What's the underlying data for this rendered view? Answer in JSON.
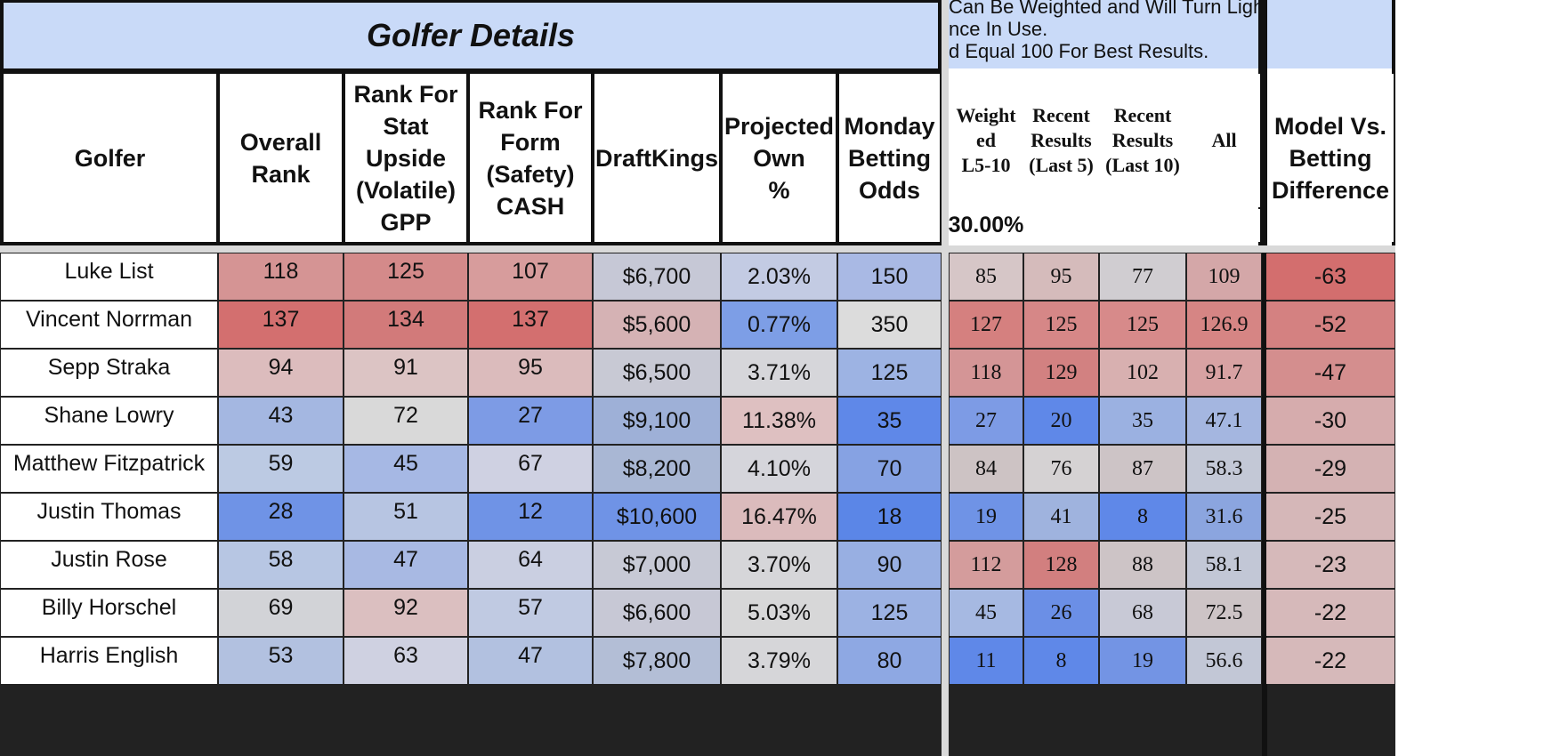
{
  "banner": {
    "title": "Golfer Details",
    "note_lines": [
      "Can Be Weighted and Will Turn Light",
      "nce In Use.",
      "d Equal 100 For Best Results."
    ]
  },
  "headers": {
    "golfer": "Golfer",
    "overall_rank": "Overall\nRank",
    "stat_upside": "Rank For\nStat\nUpside\n(Volatile)\nGPP",
    "form_safety": "Rank For\nForm\n(Safety)\nCASH",
    "draftkings": "DraftKings",
    "projected_own": "Projected\nOwn\n%",
    "monday_odds": "Monday\nBetting\nOdds",
    "weighted": "Weight\ned\nL5-10",
    "recent5": "Recent\nResults\n(Last 5)",
    "recent10": "Recent\nResults\n(Last 10)",
    "all": "All",
    "model_vs": "Model Vs.\nBetting\nDifference",
    "weight_value": "30.00%"
  },
  "rows": [
    {
      "golfer": "Luke List",
      "overall": "118",
      "upside": "125",
      "form": "107",
      "dk": "$6,700",
      "own": "2.03%",
      "odds": "150",
      "weighted": "85",
      "r5": "95",
      "r10": "77",
      "all": "109",
      "diff": "-63"
    },
    {
      "golfer": "Vincent Norrman",
      "overall": "137",
      "upside": "134",
      "form": "137",
      "dk": "$5,600",
      "own": "0.77%",
      "odds": "350",
      "weighted": "127",
      "r5": "125",
      "r10": "125",
      "all": "126.9",
      "diff": "-52"
    },
    {
      "golfer": "Sepp Straka",
      "overall": "94",
      "upside": "91",
      "form": "95",
      "dk": "$6,500",
      "own": "3.71%",
      "odds": "125",
      "weighted": "118",
      "r5": "129",
      "r10": "102",
      "all": "91.7",
      "diff": "-47"
    },
    {
      "golfer": "Shane Lowry",
      "overall": "43",
      "upside": "72",
      "form": "27",
      "dk": "$9,100",
      "own": "11.38%",
      "odds": "35",
      "weighted": "27",
      "r5": "20",
      "r10": "35",
      "all": "47.1",
      "diff": "-30"
    },
    {
      "golfer": "Matthew Fitzpatrick",
      "overall": "59",
      "upside": "45",
      "form": "67",
      "dk": "$8,200",
      "own": "4.10%",
      "odds": "70",
      "weighted": "84",
      "r5": "76",
      "r10": "87",
      "all": "58.3",
      "diff": "-29"
    },
    {
      "golfer": "Justin Thomas",
      "overall": "28",
      "upside": "51",
      "form": "12",
      "dk": "$10,600",
      "own": "16.47%",
      "odds": "18",
      "weighted": "19",
      "r5": "41",
      "r10": "8",
      "all": "31.6",
      "diff": "-25"
    },
    {
      "golfer": "Justin Rose",
      "overall": "58",
      "upside": "47",
      "form": "64",
      "dk": "$7,000",
      "own": "3.70%",
      "odds": "90",
      "weighted": "112",
      "r5": "128",
      "r10": "88",
      "all": "58.1",
      "diff": "-23"
    },
    {
      "golfer": "Billy Horschel",
      "overall": "69",
      "upside": "92",
      "form": "57",
      "dk": "$6,600",
      "own": "5.03%",
      "odds": "125",
      "weighted": "45",
      "r5": "26",
      "r10": "68",
      "all": "72.5",
      "diff": "-22"
    },
    {
      "golfer": "Harris English",
      "overall": "53",
      "upside": "63",
      "form": "47",
      "dk": "$7,800",
      "own": "3.79%",
      "odds": "80",
      "weighted": "11",
      "r5": "8",
      "r10": "19",
      "all": "56.6",
      "diff": "-22"
    }
  ],
  "colors": {
    "banner": "#c9daf8",
    "weight_highlight": "#7ff5f9",
    "rows": [
      {
        "overall": "#d59494",
        "upside": "#d48a8a",
        "form": "#d79c9c",
        "dk": "#c6c8d6",
        "own": "#c3cbe3",
        "odds": "#a9b9e4",
        "weighted": "#d6c6c7",
        "r5": "#d5bbbb",
        "r10": "#d0cdd1",
        "all": "#d4a7a8",
        "diff": "#d36e6e"
      },
      {
        "overall": "#d36f6f",
        "upside": "#d27a7a",
        "form": "#d36f6f",
        "dk": "#d5b2b4",
        "own": "#7d9ee6",
        "odds": "#dcdcdc",
        "weighted": "#d5807f",
        "r5": "#d68787",
        "r10": "#d78a8a",
        "all": "#d68584",
        "diff": "#d48181"
      },
      {
        "overall": "#dcbcbd",
        "upside": "#dcc4c4",
        "form": "#dbbbbc",
        "dk": "#c8c9d4",
        "own": "#d6d6da",
        "odds": "#9db3e3",
        "weighted": "#d49596",
        "r5": "#d28181",
        "r10": "#d8b0b0",
        "all": "#d8a2a3",
        "diff": "#d48e8e"
      },
      {
        "overall": "#a4b7e1",
        "upside": "#d9d9d9",
        "form": "#7d9be5",
        "dk": "#9eb0d7",
        "own": "#dec0c1",
        "odds": "#5f88e8",
        "weighted": "#7d9be5",
        "r5": "#5f88e8",
        "r10": "#9bb1e1",
        "all": "#a4b6e0",
        "diff": "#d6acad"
      },
      {
        "overall": "#bccae3",
        "upside": "#a6b8e4",
        "form": "#cfd1e2",
        "dk": "#a9b7d4",
        "own": "#d5d5db",
        "odds": "#86a2e3",
        "weighted": "#cdc3c4",
        "r5": "#d5d2d3",
        "r10": "#cdc4c6",
        "all": "#c3c8d6",
        "diff": "#d4b2b3"
      },
      {
        "overall": "#6f93e6",
        "upside": "#b7c5e2",
        "form": "#6f93e6",
        "dk": "#6f93e6",
        "own": "#dbbbbc",
        "odds": "#5b86e7",
        "weighted": "#6f93e6",
        "r5": "#9fb3de",
        "r10": "#5f88e8",
        "all": "#8ba5df",
        "diff": "#d5b7b8"
      },
      {
        "overall": "#b7c6e3",
        "upside": "#a8b9e3",
        "form": "#cacfe1",
        "dk": "#c7c9d5",
        "own": "#d6d6d9",
        "odds": "#98afe2",
        "weighted": "#d49c9c",
        "r5": "#d27f7f",
        "r10": "#cdc4c6",
        "all": "#c2c7d6",
        "diff": "#d6b9ba"
      },
      {
        "overall": "#d2d3d7",
        "upside": "#dbbfc0",
        "form": "#c0cae2",
        "dk": "#c7c8d5",
        "own": "#d7d7d8",
        "odds": "#9cb2e3",
        "weighted": "#a6b9e2",
        "r5": "#6b8fe6",
        "r10": "#c8c9d6",
        "all": "#cdc4c6",
        "diff": "#d6b9ba"
      },
      {
        "overall": "#b2c1e0",
        "upside": "#cfd1e1",
        "form": "#b2c1e0",
        "dk": "#b3bed6",
        "own": "#d6d6d9",
        "odds": "#8ea8e3",
        "weighted": "#5f88e8",
        "r5": "#5f88e8",
        "r10": "#7394e4",
        "all": "#c2c7d6",
        "diff": "#d6b9ba"
      }
    ]
  }
}
